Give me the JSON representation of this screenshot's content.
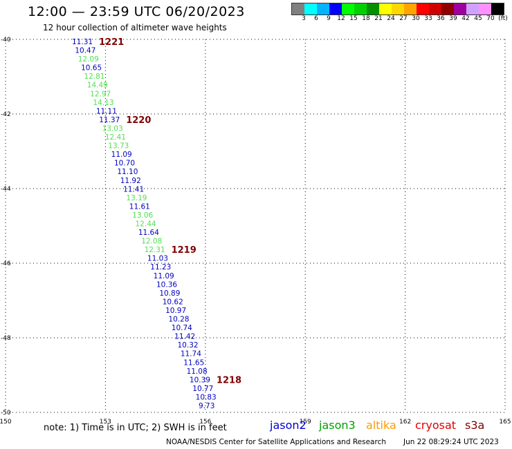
{
  "header": {
    "title": "12:00 — 23:59 UTC 06/20/2023",
    "subtitle": "12 hour collection of altimeter wave heights"
  },
  "legend": {
    "colors": [
      "#808080",
      "#00ffff",
      "#00b4ff",
      "#0000ff",
      "#00ff00",
      "#00d000",
      "#009000",
      "#ffff00",
      "#ffd700",
      "#ffa500",
      "#ff0000",
      "#d00000",
      "#900000",
      "#a000a0",
      "#d0a0ff",
      "#ff90ff",
      "#000000"
    ],
    "labels": [
      "3",
      "6",
      "9",
      "12",
      "15",
      "18",
      "21",
      "24",
      "27",
      "30",
      "33",
      "36",
      "39",
      "42",
      "45",
      "70",
      "(ft)"
    ]
  },
  "map": {
    "lon_ticks": [
      "150",
      "153",
      "156",
      "159",
      "162",
      "165"
    ],
    "lat_ticks": [
      "-40",
      "-42",
      "-44",
      "-46",
      "-48",
      "-50"
    ],
    "lon_range": [
      150,
      165
    ],
    "lat_range": [
      -40,
      -50
    ]
  },
  "swh_labels": [
    {
      "v": "11.31",
      "c": "#0000c0"
    },
    {
      "v": "10.47",
      "c": "#0000c0"
    },
    {
      "v": "12.09",
      "c": "#50e050"
    },
    {
      "v": "10.65",
      "c": "#0000c0"
    },
    {
      "v": "12.81",
      "c": "#50e050"
    },
    {
      "v": "14.49",
      "c": "#50e050"
    },
    {
      "v": "12.97",
      "c": "#50e050"
    },
    {
      "v": "14.13",
      "c": "#50e050"
    },
    {
      "v": "11.11",
      "c": "#0000c0"
    },
    {
      "v": "11.37",
      "c": "#0000c0"
    },
    {
      "v": "13.03",
      "c": "#50e050"
    },
    {
      "v": "12.41",
      "c": "#50e050"
    },
    {
      "v": "13.73",
      "c": "#50e050"
    },
    {
      "v": "11.09",
      "c": "#0000c0"
    },
    {
      "v": "10.70",
      "c": "#0000c0"
    },
    {
      "v": "11.10",
      "c": "#0000c0"
    },
    {
      "v": "11.92",
      "c": "#0000c0"
    },
    {
      "v": "11.41",
      "c": "#0000c0"
    },
    {
      "v": "13.19",
      "c": "#50e050"
    },
    {
      "v": "11.61",
      "c": "#0000c0"
    },
    {
      "v": "13.06",
      "c": "#50e050"
    },
    {
      "v": "12.44",
      "c": "#50e050"
    },
    {
      "v": "11.64",
      "c": "#0000c0"
    },
    {
      "v": "12.08",
      "c": "#50e050"
    },
    {
      "v": "12.31",
      "c": "#50e050"
    },
    {
      "v": "11.03",
      "c": "#0000c0"
    },
    {
      "v": "11.23",
      "c": "#0000c0"
    },
    {
      "v": "11.09",
      "c": "#0000c0"
    },
    {
      "v": "10.36",
      "c": "#0000c0"
    },
    {
      "v": "10.89",
      "c": "#0000c0"
    },
    {
      "v": "10.62",
      "c": "#0000c0"
    },
    {
      "v": "10.97",
      "c": "#0000c0"
    },
    {
      "v": "10.28",
      "c": "#0000c0"
    },
    {
      "v": "10.74",
      "c": "#0000c0"
    },
    {
      "v": "11.42",
      "c": "#0000c0"
    },
    {
      "v": "10.32",
      "c": "#0000c0"
    },
    {
      "v": "11.74",
      "c": "#0000c0"
    },
    {
      "v": "11.65",
      "c": "#0000c0"
    },
    {
      "v": "11.08",
      "c": "#0000c0"
    },
    {
      "v": "10.39",
      "c": "#0000c0"
    },
    {
      "v": "10.77",
      "c": "#0000c0"
    },
    {
      "v": "10.83",
      "c": "#0000c0"
    },
    {
      "v": "9.73",
      "c": "#0000c0"
    }
  ],
  "time_labels": [
    {
      "v": "1221",
      "after": 0
    },
    {
      "v": "1220",
      "after": 9
    },
    {
      "v": "1219",
      "after": 24
    },
    {
      "v": "1218",
      "after": 39
    }
  ],
  "footer": {
    "note": "note: 1) Time is in UTC; 2) SWH is in feet",
    "satellites": [
      {
        "name": "jason2",
        "color": "#0000d0"
      },
      {
        "name": "jason3",
        "color": "#00a000"
      },
      {
        "name": "altika",
        "color": "#ff9900"
      },
      {
        "name": "cryosat",
        "color": "#e00000"
      },
      {
        "name": "s3a",
        "color": "#800000"
      }
    ],
    "credit": "NOAA/NESDIS Center for Satellite Applications and Research",
    "timestamp": "Jun 22 08:29:24 UTC 2023"
  }
}
